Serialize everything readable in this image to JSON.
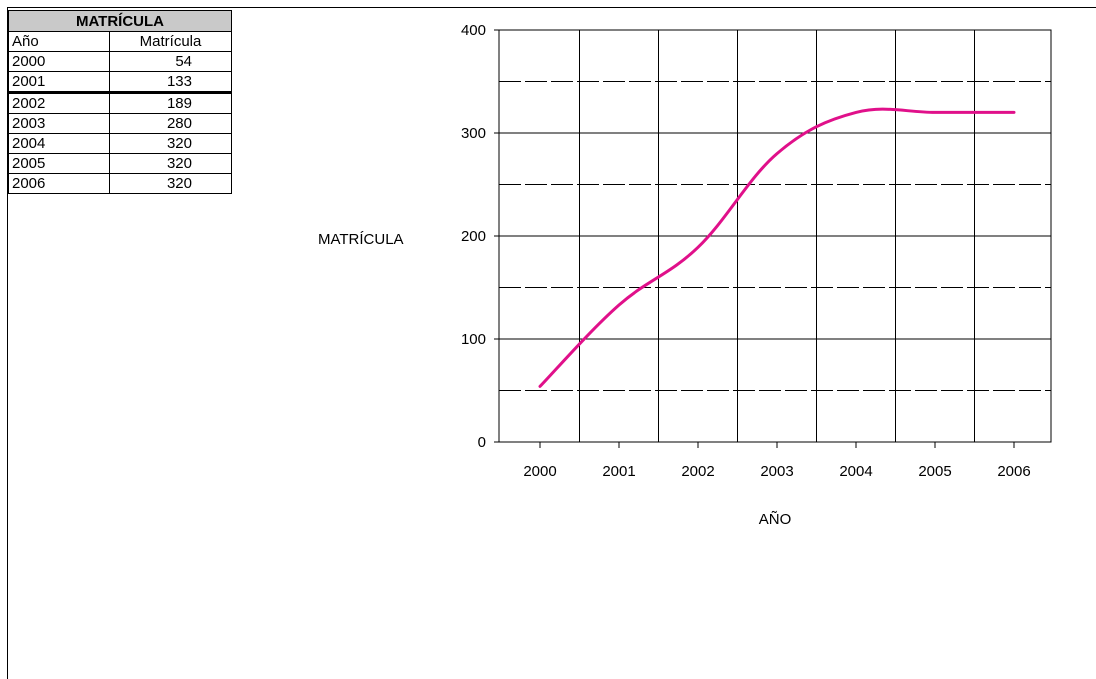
{
  "table": {
    "title": "MATRÍCULA",
    "col_year": "Año",
    "col_value": "Matrícula",
    "rows": [
      {
        "year": "2000",
        "value": "54"
      },
      {
        "year": "2001",
        "value": "133"
      },
      {
        "year": "2002",
        "value": "189"
      },
      {
        "year": "2003",
        "value": "280"
      },
      {
        "year": "2004",
        "value": "320"
      },
      {
        "year": "2005",
        "value": "320"
      },
      {
        "year": "2006",
        "value": "320"
      }
    ]
  },
  "chart_data": {
    "type": "line",
    "title": "",
    "xlabel": "AÑO",
    "ylabel": "MATRÍCULA",
    "categories": [
      "2000",
      "2001",
      "2002",
      "2003",
      "2004",
      "2005",
      "2006"
    ],
    "series": [
      {
        "values": [
          54,
          133,
          189,
          280,
          320,
          320,
          320
        ],
        "color": "#e0108a"
      }
    ],
    "ylim": [
      0,
      400
    ],
    "yticks": [
      0,
      100,
      200,
      300,
      400
    ],
    "grid": true,
    "legend": "none"
  }
}
